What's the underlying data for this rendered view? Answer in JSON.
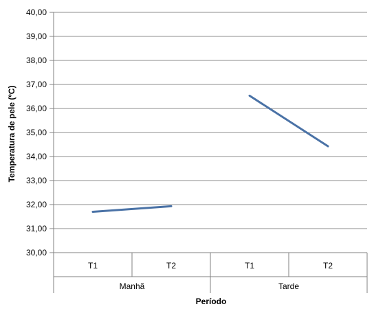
{
  "chart_data": {
    "type": "line",
    "title": "",
    "xlabel": "Período",
    "ylabel": "Temperatura de pele (ºC)",
    "ylim": [
      30,
      40
    ],
    "ytick_step": 1,
    "ytick_labels": [
      "30,00",
      "31,00",
      "32,00",
      "33,00",
      "34,00",
      "35,00",
      "36,00",
      "37,00",
      "38,00",
      "39,00",
      "40,00"
    ],
    "grid": true,
    "groups": [
      {
        "label": "Manhã",
        "categories": [
          "T1",
          "T2"
        ]
      },
      {
        "label": "Tarde",
        "categories": [
          "T1",
          "T2"
        ]
      }
    ],
    "series": [
      {
        "values": [
          31.7,
          31.93,
          36.53,
          34.43
        ],
        "color": "#4a72a6"
      }
    ],
    "line_breaks_between_groups": true,
    "colors": {
      "line": "#4a72a6",
      "grid": "#8c8c8c",
      "axis": "#808080"
    }
  }
}
